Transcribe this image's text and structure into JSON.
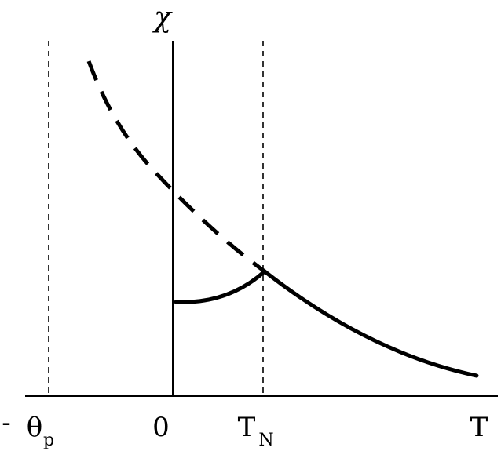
{
  "labels": {
    "chi": "χ",
    "minus": "-",
    "theta": "θ",
    "theta_sub": "p",
    "zero": "0",
    "tn": "T",
    "tn_sub": "N",
    "t": "T"
  },
  "colors": {
    "ink": "#000000",
    "background": "#ffffff"
  }
}
